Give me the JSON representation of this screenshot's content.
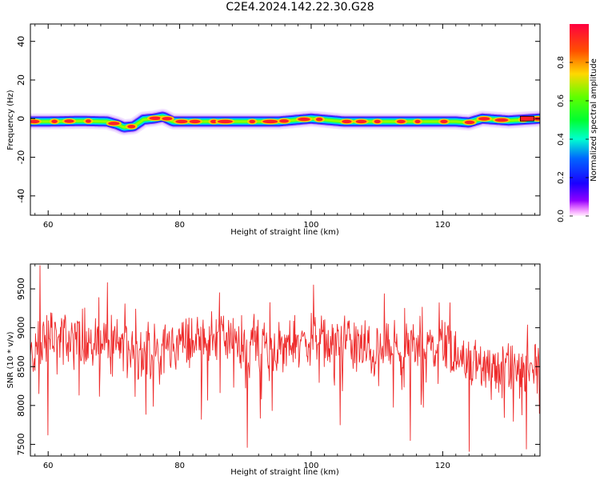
{
  "figure": {
    "title": "C2E4.2024.142.22.30.G28"
  },
  "chart_data": [
    {
      "type": "heatmap",
      "xlabel": "Height of straight line (km)",
      "ylabel": "Frequency (Hz)",
      "xlim": [
        57.3,
        134.8
      ],
      "ylim": [
        -50,
        49
      ],
      "xticks": [
        60,
        80,
        100,
        120
      ],
      "yticks": [
        -40,
        -20,
        0,
        20,
        40
      ],
      "colorbar": {
        "label": "Normalized spectral amplitude",
        "range": [
          0,
          1
        ],
        "ticks": [
          0.0,
          0.2,
          0.4,
          0.6,
          0.8
        ],
        "tick_labels": [
          "0.0",
          "0.2",
          "0.4",
          "0.6",
          "0.8"
        ],
        "colormap": "gist_rainbow_r"
      },
      "ridge": {
        "description_points_height_km": [
          57.3,
          60,
          65,
          69,
          70.5,
          71.5,
          73,
          74.5,
          76,
          77.5,
          79,
          85,
          95,
          100,
          105,
          115,
          122,
          124,
          126,
          130,
          134.8
        ],
        "description_points_frequency_hz": [
          -1.5,
          -1.5,
          -1.2,
          -1.5,
          -3,
          -4.5,
          -4.0,
          -0.5,
          0,
          1.0,
          -1.5,
          -1.5,
          -1.5,
          0,
          -1.5,
          -1.5,
          -1.5,
          -2.0,
          0,
          -1,
          0
        ]
      },
      "grid": false
    },
    {
      "type": "line",
      "xlabel": "Height of straight line (km)",
      "ylabel": "SNR (10 * v/v)",
      "xlim": [
        57.3,
        134.8
      ],
      "ylim": [
        7350,
        9820
      ],
      "xticks": [
        60,
        80,
        100,
        120
      ],
      "yticks": [
        7500,
        8000,
        8500,
        9000,
        9500
      ],
      "series": [
        {
          "color": "#ee2a2a",
          "baseline_points_height_km": [
            57.3,
            60,
            65,
            70,
            75,
            80,
            85,
            90,
            95,
            100,
            105,
            110,
            115,
            120,
            122,
            125,
            130,
            134.8
          ],
          "baseline_points_snr": [
            8600,
            8900,
            8850,
            8800,
            8650,
            8800,
            8900,
            8800,
            8750,
            8850,
            8800,
            8700,
            8700,
            8850,
            8700,
            8500,
            8400,
            8500
          ],
          "notable_spikes_height_km": [
            58.8,
            60.0,
            69.0,
            90.3,
            104.4,
            115.1,
            124.0,
            132.7
          ],
          "notable_spikes_snr": [
            9800,
            7620,
            9580,
            7460,
            7750,
            7550,
            7410,
            7440
          ]
        }
      ],
      "grid": false
    }
  ]
}
